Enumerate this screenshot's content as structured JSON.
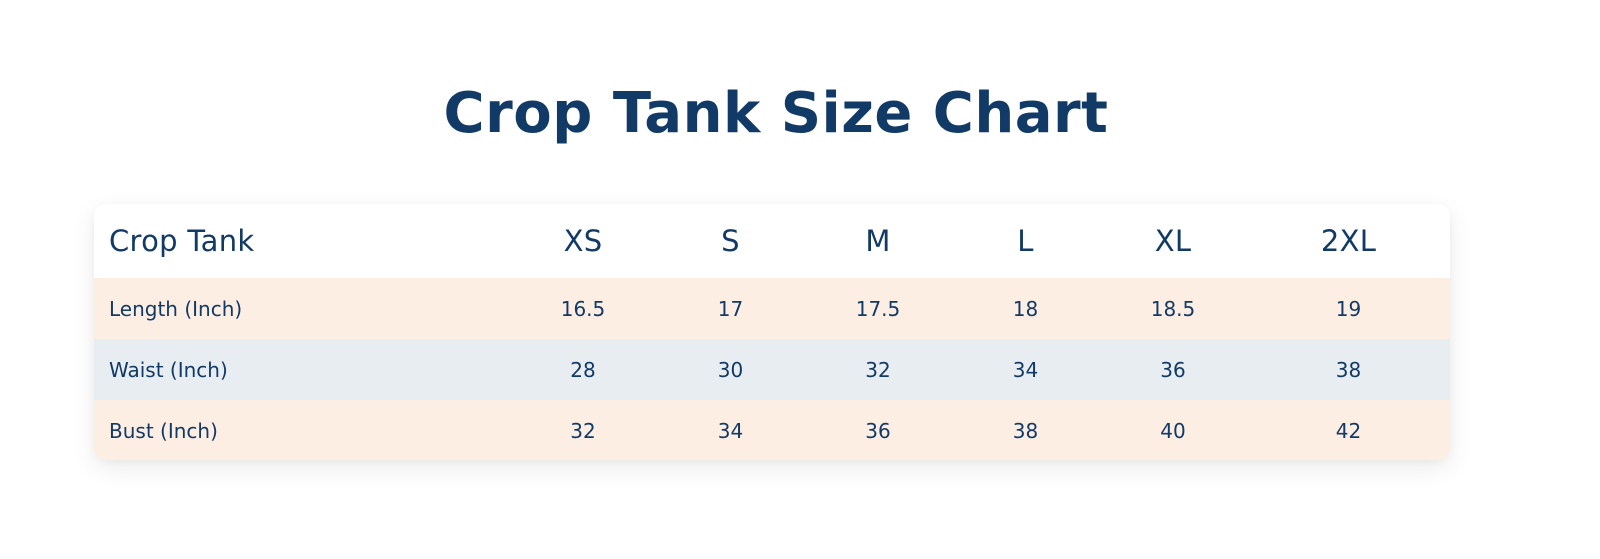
{
  "title": "Crop Tank Size Chart",
  "colors": {
    "text": "#123a66",
    "row_peach": "#fdeee4",
    "row_gray": "#e8edf1",
    "header_bg": "#ffffff"
  },
  "table": {
    "corner_label": "Crop Tank",
    "sizes": [
      "XS",
      "S",
      "M",
      "L",
      "XL",
      "2XL"
    ],
    "rows": [
      {
        "label": "Length (Inch)",
        "values": [
          "16.5",
          "17",
          "17.5",
          "18",
          "18.5",
          "19"
        ],
        "bg": "#fdeee4"
      },
      {
        "label": "Waist (Inch)",
        "values": [
          "28",
          "30",
          "32",
          "34",
          "36",
          "38"
        ],
        "bg": "#e8edf1"
      },
      {
        "label": "Bust (Inch)",
        "values": [
          "32",
          "34",
          "36",
          "38",
          "40",
          "42"
        ],
        "bg": "#fdeee4"
      }
    ]
  }
}
